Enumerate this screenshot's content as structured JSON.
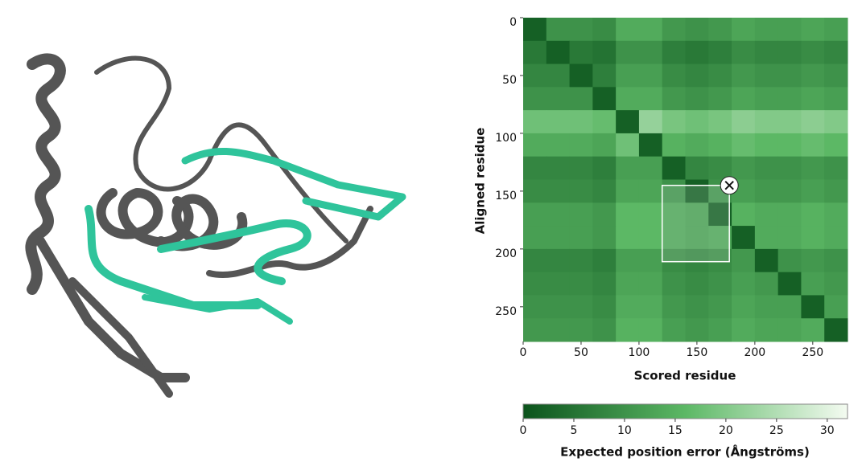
{
  "chart_data": {
    "type": "heatmap",
    "x_label": "Scored residue",
    "y_label": "Aligned residue",
    "xlim": [
      0,
      280
    ],
    "ylim": [
      0,
      280
    ],
    "xticks": [
      0,
      50,
      100,
      150,
      200,
      250
    ],
    "yticks": [
      0,
      50,
      100,
      150,
      200,
      250
    ],
    "x_bins": [
      0,
      20,
      40,
      60,
      80,
      100,
      120,
      140,
      160,
      180,
      200,
      220,
      240,
      260,
      280
    ],
    "y_bins": [
      0,
      20,
      40,
      60,
      80,
      100,
      120,
      140,
      160,
      180,
      200,
      220,
      240,
      260,
      280
    ],
    "z": [
      [
        2,
        10,
        10,
        9,
        14,
        14,
        11,
        10,
        11,
        13,
        12,
        12,
        13,
        12
      ],
      [
        6,
        2,
        6,
        5,
        10,
        10,
        7,
        6,
        7,
        9,
        8,
        8,
        9,
        8
      ],
      [
        8,
        8,
        2,
        7,
        12,
        12,
        9,
        8,
        9,
        11,
        10,
        10,
        11,
        10
      ],
      [
        10,
        10,
        10,
        2,
        14,
        14,
        11,
        10,
        11,
        13,
        12,
        12,
        13,
        12
      ],
      [
        18,
        18,
        18,
        17,
        2,
        22,
        19,
        18,
        19,
        21,
        20,
        20,
        21,
        20
      ],
      [
        14,
        14,
        14,
        13,
        18,
        2,
        15,
        14,
        15,
        17,
        16,
        16,
        17,
        16
      ],
      [
        8,
        8,
        8,
        7,
        12,
        12,
        2,
        8,
        9,
        11,
        10,
        10,
        11,
        10
      ],
      [
        9,
        9,
        9,
        8,
        13,
        13,
        10,
        2,
        10,
        12,
        11,
        11,
        12,
        11
      ],
      [
        12,
        12,
        12,
        11,
        16,
        16,
        13,
        12,
        2,
        15,
        14,
        14,
        15,
        14
      ],
      [
        12,
        12,
        12,
        11,
        16,
        16,
        13,
        12,
        13,
        2,
        14,
        14,
        15,
        14
      ],
      [
        8,
        8,
        8,
        7,
        12,
        12,
        9,
        8,
        9,
        11,
        2,
        10,
        11,
        10
      ],
      [
        9,
        9,
        9,
        8,
        13,
        13,
        10,
        9,
        10,
        12,
        11,
        2,
        12,
        11
      ],
      [
        10,
        10,
        10,
        9,
        14,
        14,
        11,
        10,
        11,
        13,
        12,
        12,
        2,
        12
      ],
      [
        11,
        11,
        11,
        10,
        15,
        15,
        12,
        11,
        12,
        14,
        13,
        13,
        14,
        2
      ]
    ],
    "colorbar": {
      "label": "Expected position error (Ångströms)",
      "lim": [
        0,
        32
      ],
      "ticks": [
        0,
        5,
        10,
        15,
        20,
        25,
        30
      ],
      "colors": [
        "#0b531c",
        "#5cb865",
        "#f4fbf1"
      ]
    },
    "selection": {
      "x": [
        120,
        178
      ],
      "y": [
        145,
        211
      ]
    }
  }
}
